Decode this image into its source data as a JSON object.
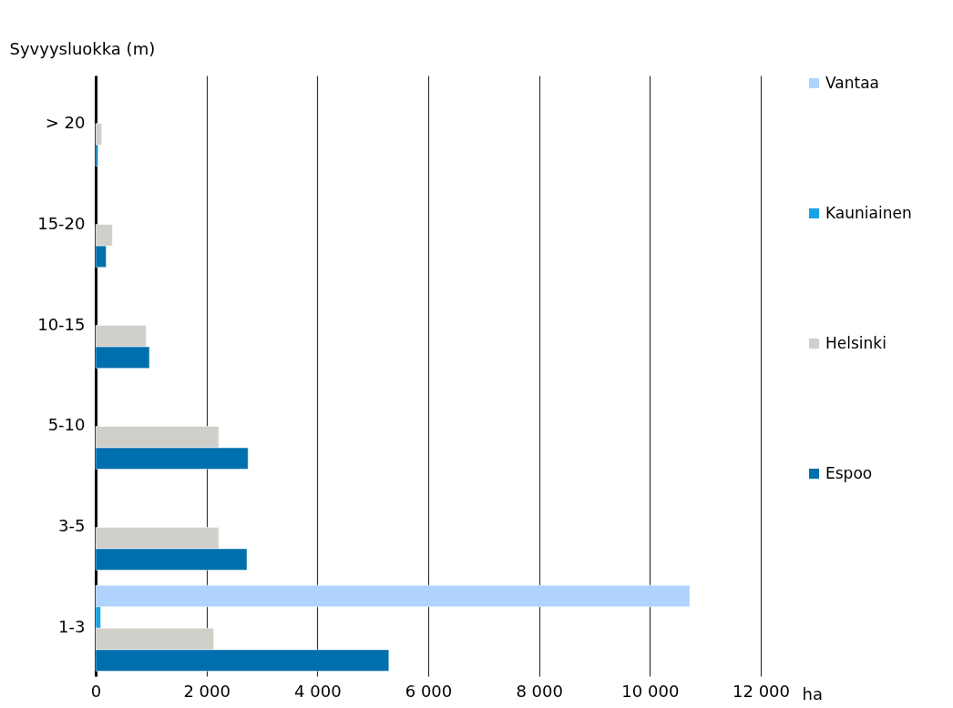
{
  "chart_data": {
    "type": "bar",
    "orientation": "horizontal",
    "ylabel": "Syvyysluokka (m)",
    "xlabel": "ha",
    "categories": [
      "> 20",
      "15-20",
      "10-15",
      "5-10",
      "3-5",
      "1-3"
    ],
    "series": [
      {
        "name": "Vantaa",
        "color": "#afd3fc",
        "values": [
          null,
          null,
          null,
          null,
          null,
          10720
        ]
      },
      {
        "name": "Kauniainen",
        "color": "#15a2e8",
        "values": [
          null,
          null,
          null,
          null,
          null,
          90
        ]
      },
      {
        "name": "Helsinki",
        "color": "#d0cfca",
        "values": [
          110,
          300,
          910,
          2220,
          2220,
          2130
        ]
      },
      {
        "name": "Espoo",
        "color": "#006fad",
        "values": [
          40,
          190,
          970,
          2750,
          2730,
          5290
        ]
      }
    ],
    "xlim": [
      0,
      12000
    ],
    "xticks": [
      0,
      {
        "value": 2000,
        "label": "2 000"
      },
      {
        "value": 4000,
        "label": "4 000"
      },
      {
        "value": 6000,
        "label": "6 000"
      },
      {
        "value": 8000,
        "label": "8 000"
      },
      {
        "value": 10000,
        "label": "10 000"
      },
      {
        "value": 12000,
        "label": "12 000"
      }
    ],
    "grid": "x",
    "legend": "right"
  }
}
